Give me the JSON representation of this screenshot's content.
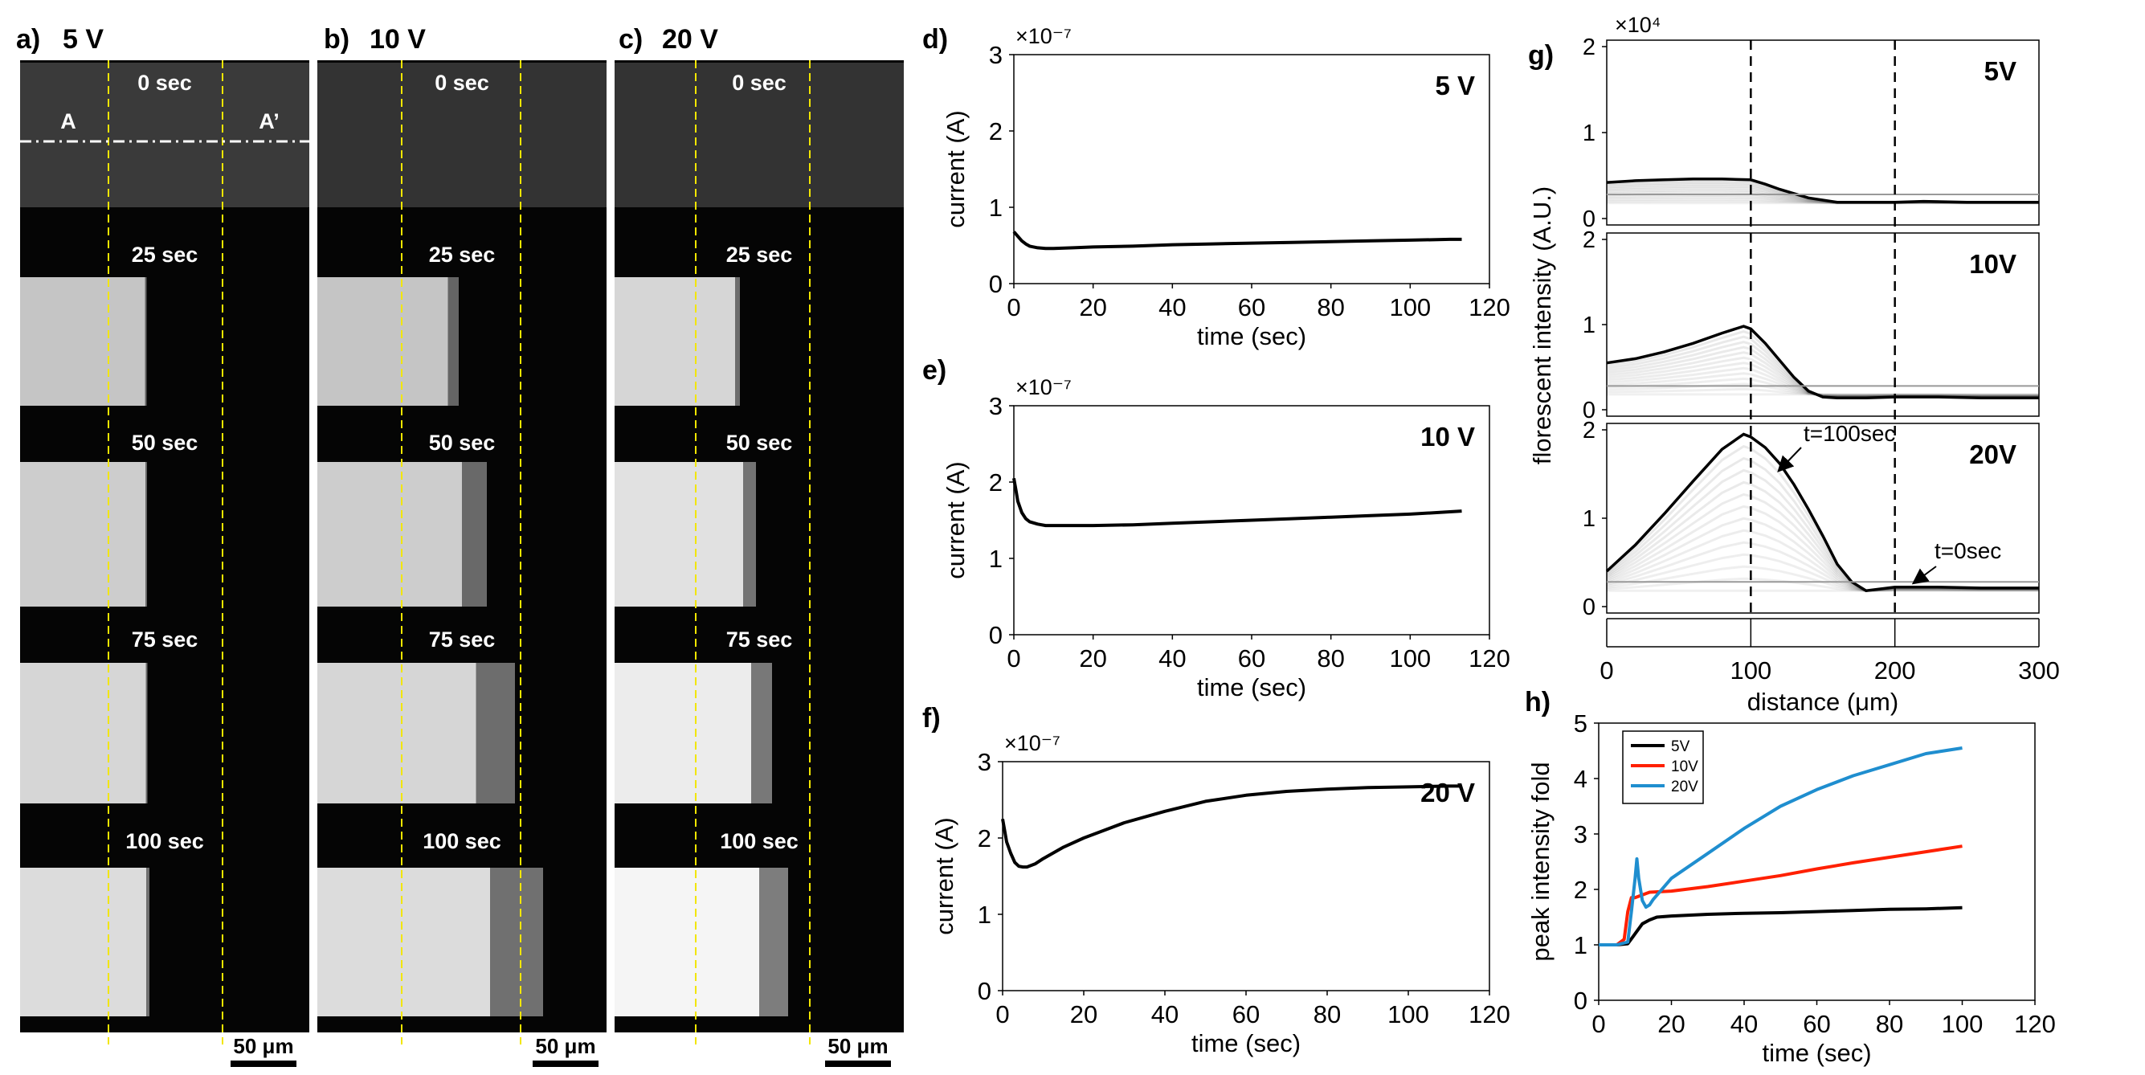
{
  "panels": {
    "a": {
      "label": "a)",
      "voltage": "5 V"
    },
    "b": {
      "label": "b)",
      "voltage": "10 V"
    },
    "c": {
      "label": "c)",
      "voltage": "20 V"
    },
    "times": [
      "0 sec",
      "25 sec",
      "50 sec",
      "75 sec",
      "100 sec"
    ],
    "marker_a": "A",
    "marker_a_prime": "A’",
    "scalebar": "50 μm"
  },
  "chart_data": [
    {
      "id": "d",
      "panel_label": "d)",
      "type": "line",
      "title": "5 V",
      "xlabel": "time (sec)",
      "ylabel": "current (A)",
      "exponent": "×10⁻⁷",
      "xlim": [
        0,
        120
      ],
      "ylim": [
        0,
        3
      ],
      "xticks": [
        "0",
        "20",
        "40",
        "60",
        "80",
        "100",
        "120"
      ],
      "yticks": [
        "0",
        "1",
        "2",
        "3"
      ],
      "series": [
        {
          "name": "5 V",
          "color": "#000000",
          "x": [
            0,
            1,
            2,
            3,
            4,
            6,
            8,
            10,
            15,
            20,
            30,
            40,
            50,
            60,
            70,
            80,
            90,
            100,
            110,
            113
          ],
          "y": [
            0.68,
            0.62,
            0.56,
            0.52,
            0.49,
            0.47,
            0.46,
            0.46,
            0.47,
            0.48,
            0.49,
            0.51,
            0.52,
            0.53,
            0.54,
            0.55,
            0.56,
            0.57,
            0.58,
            0.58
          ]
        }
      ]
    },
    {
      "id": "e",
      "panel_label": "e)",
      "type": "line",
      "title": "10 V",
      "xlabel": "time (sec)",
      "ylabel": "current (A)",
      "exponent": "×10⁻⁷",
      "xlim": [
        0,
        120
      ],
      "ylim": [
        0,
        3
      ],
      "xticks": [
        "0",
        "20",
        "40",
        "60",
        "80",
        "100",
        "120"
      ],
      "yticks": [
        "0",
        "1",
        "2",
        "3"
      ],
      "series": [
        {
          "name": "10 V",
          "color": "#000000",
          "x": [
            0,
            0.5,
            1,
            2,
            3,
            4,
            6,
            8,
            10,
            15,
            20,
            30,
            40,
            50,
            60,
            70,
            80,
            90,
            100,
            110,
            113
          ],
          "y": [
            2.05,
            1.9,
            1.75,
            1.6,
            1.52,
            1.48,
            1.45,
            1.43,
            1.43,
            1.43,
            1.43,
            1.44,
            1.46,
            1.48,
            1.5,
            1.52,
            1.54,
            1.56,
            1.58,
            1.61,
            1.62
          ]
        }
      ]
    },
    {
      "id": "f",
      "panel_label": "f)",
      "type": "line",
      "title": "20 V",
      "xlabel": "time (sec)",
      "ylabel": "current (A)",
      "exponent": "×10⁻⁷",
      "xlim": [
        0,
        120
      ],
      "ylim": [
        0,
        3
      ],
      "xticks": [
        "0",
        "20",
        "40",
        "60",
        "80",
        "100",
        "120"
      ],
      "yticks": [
        "0",
        "1",
        "2",
        "3"
      ],
      "series": [
        {
          "name": "20 V",
          "color": "#000000",
          "x": [
            0,
            0.5,
            1,
            2,
            3,
            4,
            5,
            6,
            8,
            10,
            15,
            20,
            25,
            30,
            40,
            50,
            60,
            70,
            80,
            90,
            100,
            110,
            113
          ],
          "y": [
            2.25,
            2.1,
            1.95,
            1.8,
            1.68,
            1.63,
            1.62,
            1.62,
            1.66,
            1.73,
            1.88,
            2.0,
            2.1,
            2.2,
            2.35,
            2.48,
            2.56,
            2.61,
            2.64,
            2.66,
            2.67,
            2.68,
            2.68
          ]
        }
      ]
    },
    {
      "id": "g",
      "panel_label": "g)",
      "type": "line",
      "xlabel": "distance (μm)",
      "ylabel": "florescent intensity (A.U.)",
      "exponent": "×10⁴",
      "xlim": [
        0,
        300
      ],
      "xticks": [
        "0",
        "100",
        "200",
        "300"
      ],
      "vlines": [
        100,
        200
      ],
      "subplots": [
        {
          "title": "5V",
          "ylim": [
            0,
            2
          ],
          "yticks": [
            "0",
            "1",
            "2"
          ],
          "series": [
            {
              "name": "t=100sec",
              "x": [
                0,
                20,
                40,
                60,
                80,
                100,
                110,
                120,
                140,
                160,
                180,
                200,
                220,
                250,
                280,
                300
              ],
              "y": [
                0.42,
                0.44,
                0.45,
                0.46,
                0.46,
                0.45,
                0.4,
                0.34,
                0.24,
                0.19,
                0.19,
                0.19,
                0.2,
                0.19,
                0.19,
                0.19
              ]
            }
          ]
        },
        {
          "title": "10V",
          "ylim": [
            0,
            2
          ],
          "yticks": [
            "0",
            "1",
            "2"
          ],
          "series": [
            {
              "name": "t=100sec",
              "x": [
                0,
                20,
                40,
                60,
                80,
                95,
                100,
                110,
                120,
                130,
                140,
                150,
                160,
                180,
                200,
                230,
                260,
                300
              ],
              "y": [
                0.55,
                0.6,
                0.68,
                0.78,
                0.9,
                0.98,
                0.95,
                0.78,
                0.58,
                0.38,
                0.22,
                0.15,
                0.14,
                0.14,
                0.15,
                0.15,
                0.14,
                0.14
              ]
            }
          ]
        },
        {
          "title": "20V",
          "ylim": [
            0,
            2
          ],
          "yticks": [
            "0",
            "1",
            "2"
          ],
          "annotations": [
            "t=100sec",
            "t=0sec"
          ],
          "series": [
            {
              "name": "t=100sec",
              "x": [
                0,
                20,
                40,
                60,
                80,
                95,
                100,
                110,
                120,
                130,
                140,
                150,
                160,
                170,
                180,
                190,
                200,
                230,
                260,
                300
              ],
              "y": [
                0.4,
                0.7,
                1.05,
                1.42,
                1.78,
                1.95,
                1.92,
                1.8,
                1.62,
                1.38,
                1.1,
                0.8,
                0.48,
                0.28,
                0.18,
                0.2,
                0.22,
                0.22,
                0.21,
                0.21
              ]
            }
          ]
        }
      ]
    },
    {
      "id": "h",
      "panel_label": "h)",
      "type": "line",
      "xlabel": "time (sec)",
      "ylabel": "peak intensity fold",
      "xlim": [
        0,
        120
      ],
      "ylim": [
        0,
        5
      ],
      "xticks": [
        "0",
        "20",
        "40",
        "60",
        "80",
        "100",
        "120"
      ],
      "yticks": [
        "0",
        "1",
        "2",
        "3",
        "4",
        "5"
      ],
      "legend": "top-left",
      "series": [
        {
          "name": "5V",
          "color": "#000000",
          "x": [
            0,
            5,
            8,
            10,
            12,
            14,
            16,
            20,
            30,
            40,
            50,
            60,
            70,
            80,
            90,
            100
          ],
          "y": [
            1.0,
            1.0,
            1.02,
            1.2,
            1.38,
            1.45,
            1.5,
            1.52,
            1.55,
            1.57,
            1.58,
            1.6,
            1.62,
            1.64,
            1.65,
            1.67
          ]
        },
        {
          "name": "10V",
          "color": "#ff2000",
          "x": [
            0,
            5,
            7,
            8,
            9,
            10,
            12,
            14,
            20,
            30,
            40,
            50,
            60,
            70,
            80,
            90,
            100
          ],
          "y": [
            1.0,
            1.0,
            1.1,
            1.6,
            1.85,
            1.85,
            1.9,
            1.95,
            1.97,
            2.05,
            2.15,
            2.25,
            2.37,
            2.48,
            2.58,
            2.68,
            2.78
          ]
        },
        {
          "name": "20V",
          "color": "#1f8ecf",
          "x": [
            0,
            5,
            8,
            9,
            10,
            10.5,
            11,
            12,
            13,
            14,
            15,
            20,
            30,
            40,
            50,
            60,
            70,
            80,
            90,
            100
          ],
          "y": [
            1.0,
            1.0,
            1.05,
            1.6,
            2.2,
            2.55,
            2.2,
            1.8,
            1.68,
            1.72,
            1.82,
            2.2,
            2.65,
            3.1,
            3.5,
            3.8,
            4.05,
            4.25,
            4.45,
            4.55
          ]
        }
      ]
    }
  ]
}
